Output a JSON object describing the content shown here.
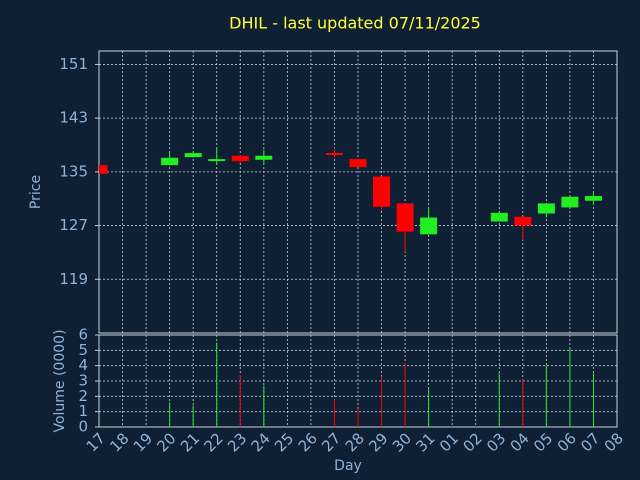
{
  "chart_data": [
    {
      "type": "candlestick",
      "title": "DHIL - last updated 07/11/2025",
      "ylabel": "Price",
      "categories": [
        "17",
        "18",
        "19",
        "20",
        "21",
        "22",
        "23",
        "24",
        "25",
        "26",
        "27",
        "28",
        "29",
        "30",
        "31",
        "01",
        "02",
        "03",
        "04",
        "05",
        "06",
        "07",
        "08"
      ],
      "open": [
        136.0,
        null,
        null,
        136.0,
        137.2,
        136.6,
        137.4,
        136.8,
        null,
        null,
        137.8,
        136.9,
        134.3,
        130.3,
        125.7,
        null,
        null,
        127.6,
        128.3,
        128.8,
        129.7,
        130.7,
        null
      ],
      "high": [
        136.0,
        null,
        null,
        137.8,
        138.1,
        138.6,
        137.5,
        138.3,
        null,
        null,
        138.6,
        136.9,
        134.3,
        130.3,
        129.8,
        null,
        null,
        129.2,
        128.3,
        130.3,
        131.3,
        132.0,
        null
      ],
      "low": [
        134.7,
        null,
        null,
        136.0,
        137.1,
        136.2,
        136.3,
        136.3,
        null,
        null,
        137.1,
        135.7,
        129.2,
        123.1,
        125.7,
        null,
        null,
        127.6,
        124.9,
        128.2,
        129.7,
        130.1,
        null
      ],
      "close": [
        134.7,
        null,
        null,
        137.1,
        137.8,
        136.9,
        136.6,
        137.4,
        null,
        null,
        137.5,
        135.7,
        129.8,
        126.1,
        128.2,
        null,
        null,
        128.9,
        127.0,
        130.3,
        131.3,
        131.4,
        null
      ],
      "ylim": [
        111,
        153
      ],
      "yticks": [
        119,
        127,
        135,
        143,
        151
      ],
      "grid": true,
      "up_color": "#22ee22",
      "down_color": "#ff0000",
      "title_color": "#ffff33"
    },
    {
      "type": "bar",
      "ylabel": "Volume (0000)",
      "xlabel": "Day",
      "values": [
        null,
        null,
        null,
        1.6,
        1.4,
        5.5,
        3.4,
        2.7,
        null,
        null,
        1.8,
        1.2,
        3.3,
        4.2,
        2.5,
        null,
        null,
        3.5,
        3.1,
        4.0,
        5.1,
        3.5,
        null
      ],
      "ylim": [
        0,
        6
      ],
      "yticks": [
        0,
        1,
        2,
        3,
        4,
        5,
        6
      ],
      "grid": true
    }
  ]
}
